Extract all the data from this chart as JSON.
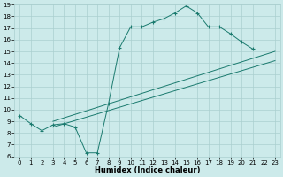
{
  "xlabel": "Humidex (Indice chaleur)",
  "bg_color": "#cceaea",
  "line_color": "#1a7a6e",
  "grid_color": "#aacfcf",
  "xlim": [
    -0.5,
    23.5
  ],
  "ylim": [
    6,
    19
  ],
  "xticks": [
    0,
    1,
    2,
    3,
    4,
    5,
    6,
    7,
    8,
    9,
    10,
    11,
    12,
    13,
    14,
    15,
    16,
    17,
    18,
    19,
    20,
    21,
    22,
    23
  ],
  "yticks": [
    6,
    7,
    8,
    9,
    10,
    11,
    12,
    13,
    14,
    15,
    16,
    17,
    18,
    19
  ],
  "curve_x": [
    0,
    1,
    2,
    3,
    4,
    5,
    6,
    7,
    8,
    9,
    10,
    11,
    12,
    13,
    14,
    15,
    16,
    17,
    18,
    19,
    20,
    21
  ],
  "curve_y": [
    9.5,
    8.8,
    8.2,
    8.7,
    8.8,
    8.5,
    6.3,
    6.3,
    10.5,
    15.3,
    17.1,
    17.1,
    17.5,
    17.8,
    18.3,
    18.9,
    18.3,
    17.1,
    17.1,
    16.5,
    15.8,
    15.2
  ],
  "line1_x": [
    3,
    23
  ],
  "line1_y": [
    9.0,
    15.0
  ],
  "line2_x": [
    3,
    23
  ],
  "line2_y": [
    8.5,
    14.2
  ],
  "tick_fontsize": 5,
  "xlabel_fontsize": 6
}
